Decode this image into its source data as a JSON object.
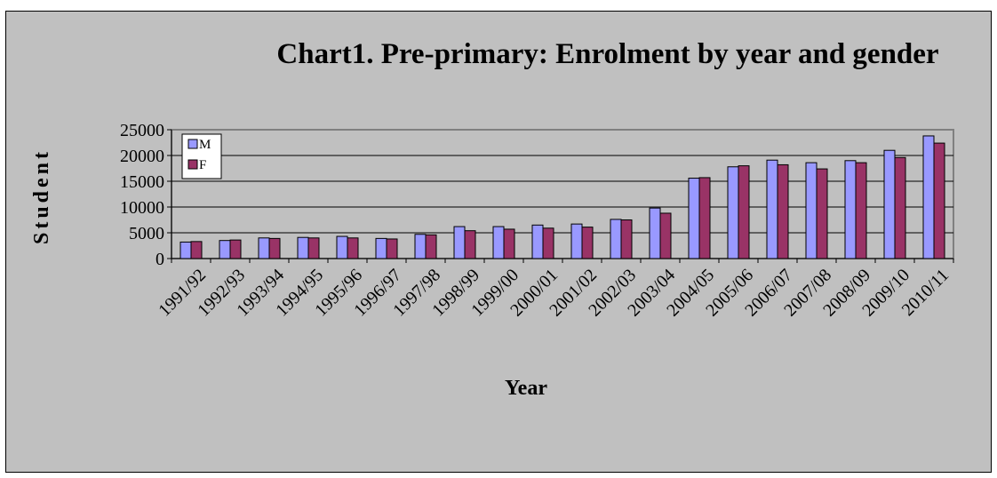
{
  "chart_data": {
    "type": "bar",
    "title": "Chart1. Pre-primary: Enrolment by year and gender",
    "xlabel": "Year",
    "ylabel": "Student",
    "ylim": [
      0,
      25000
    ],
    "yticks": [
      0,
      5000,
      10000,
      15000,
      20000,
      25000
    ],
    "grid": true,
    "legend_position": "top-left",
    "categories": [
      "1991/92",
      "1992/93",
      "1993/94",
      "1994/95",
      "1995/96",
      "1996/97",
      "1997/98",
      "1998/99",
      "1999/00",
      "2000/01",
      "2001/02",
      "2002/03",
      "2003/04",
      "2004/05",
      "2005/06",
      "2006/07",
      "2007/08",
      "2008/09",
      "2009/10",
      "2010/11"
    ],
    "series": [
      {
        "name": "M",
        "color": "#9999ff",
        "values": [
          3200,
          3500,
          4000,
          4100,
          4300,
          3900,
          4700,
          6200,
          6200,
          6500,
          6700,
          7600,
          9800,
          15600,
          17800,
          19100,
          18600,
          19000,
          21000,
          23800
        ]
      },
      {
        "name": "F",
        "color": "#993366",
        "values": [
          3300,
          3600,
          3900,
          4000,
          4000,
          3800,
          4600,
          5400,
          5700,
          5900,
          6100,
          7500,
          8800,
          15700,
          18000,
          18200,
          17400,
          18600,
          19600,
          22400
        ]
      }
    ]
  }
}
